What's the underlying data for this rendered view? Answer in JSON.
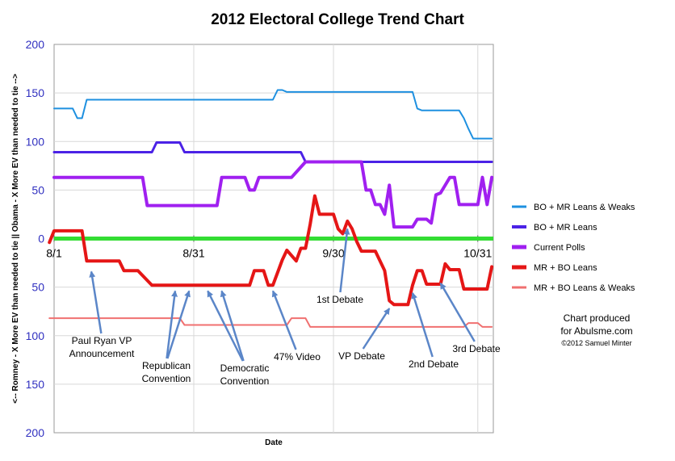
{
  "chart_data": {
    "type": "line",
    "title": "2012 Electoral College Trend Chart",
    "xlabel": "Date",
    "ylabel": "<-- Romney - X More EV than needed to tie  ||  Obama - X More EV than needed to tie -->",
    "x_start": "2012-08-01",
    "x_end": "2012-11-06",
    "ylim": [
      -200,
      200
    ],
    "ytick_values": [
      200,
      150,
      100,
      50,
      0,
      -50,
      -100,
      -150,
      -200
    ],
    "ytick_labels": [
      "200",
      "150",
      "100",
      "50",
      "0",
      "50",
      "100",
      "150",
      "200"
    ],
    "xticks": [
      {
        "label": "8/1",
        "date": "2012-08-01"
      },
      {
        "label": "8/31",
        "date": "2012-08-31"
      },
      {
        "label": "9/30",
        "date": "2012-09-30"
      },
      {
        "label": "10/31",
        "date": "2012-10-31"
      }
    ],
    "grid": true,
    "zero_line_color": "#33dd33",
    "legend_position": "right",
    "series": [
      {
        "name": "BO + MR Leans & Weaks",
        "color": "#1e90e0",
        "points": [
          [
            "2012-08-01",
            134
          ],
          [
            "2012-08-05",
            134
          ],
          [
            "2012-08-06",
            124
          ],
          [
            "2012-08-07",
            124
          ],
          [
            "2012-08-08",
            143
          ],
          [
            "2012-09-17",
            143
          ],
          [
            "2012-09-18",
            153
          ],
          [
            "2012-09-19",
            153
          ],
          [
            "2012-09-20",
            151
          ],
          [
            "2012-10-17",
            151
          ],
          [
            "2012-10-18",
            134
          ],
          [
            "2012-10-19",
            132
          ],
          [
            "2012-10-27",
            132
          ],
          [
            "2012-10-28",
            124
          ],
          [
            "2012-10-29",
            113
          ],
          [
            "2012-10-30",
            103
          ],
          [
            "2012-11-03",
            103
          ]
        ]
      },
      {
        "name": "BO + MR Leans",
        "color": "#4b22e6",
        "points": [
          [
            "2012-08-01",
            89
          ],
          [
            "2012-08-22",
            89
          ],
          [
            "2012-08-23",
            99
          ],
          [
            "2012-08-28",
            99
          ],
          [
            "2012-08-29",
            89
          ],
          [
            "2012-09-23",
            89
          ],
          [
            "2012-09-24",
            79
          ],
          [
            "2012-11-03",
            79
          ]
        ]
      },
      {
        "name": "Current Polls",
        "color": "#a020f0",
        "points": [
          [
            "2012-08-01",
            63
          ],
          [
            "2012-08-20",
            63
          ],
          [
            "2012-08-21",
            34
          ],
          [
            "2012-09-05",
            34
          ],
          [
            "2012-09-06",
            63
          ],
          [
            "2012-09-11",
            63
          ],
          [
            "2012-09-12",
            50
          ],
          [
            "2012-09-13",
            50
          ],
          [
            "2012-09-14",
            63
          ],
          [
            "2012-09-21",
            63
          ],
          [
            "2012-09-24",
            79
          ],
          [
            "2012-10-06",
            79
          ],
          [
            "2012-10-07",
            50
          ],
          [
            "2012-10-08",
            50
          ],
          [
            "2012-10-09",
            35
          ],
          [
            "2012-10-10",
            35
          ],
          [
            "2012-10-11",
            25
          ],
          [
            "2012-10-12",
            55
          ],
          [
            "2012-10-13",
            12
          ],
          [
            "2012-10-16",
            12
          ],
          [
            "2012-10-17",
            12
          ],
          [
            "2012-10-18",
            20
          ],
          [
            "2012-10-20",
            20
          ],
          [
            "2012-10-21",
            16
          ],
          [
            "2012-10-22",
            45
          ],
          [
            "2012-10-23",
            47
          ],
          [
            "2012-10-24",
            55
          ],
          [
            "2012-10-25",
            63
          ],
          [
            "2012-10-26",
            63
          ],
          [
            "2012-10-27",
            35
          ],
          [
            "2012-10-31",
            35
          ],
          [
            "2012-11-01",
            63
          ],
          [
            "2012-11-02",
            35
          ],
          [
            "2012-11-03",
            63
          ]
        ]
      },
      {
        "name": "MR + BO Leans",
        "color": "#e51616",
        "points": [
          [
            "2012-07-31",
            -4
          ],
          [
            "2012-08-01",
            8
          ],
          [
            "2012-08-07",
            8
          ],
          [
            "2012-08-08",
            -23
          ],
          [
            "2012-08-15",
            -23
          ],
          [
            "2012-08-16",
            -33
          ],
          [
            "2012-08-19",
            -33
          ],
          [
            "2012-08-22",
            -48
          ],
          [
            "2012-09-12",
            -48
          ],
          [
            "2012-09-13",
            -33
          ],
          [
            "2012-09-15",
            -33
          ],
          [
            "2012-09-16",
            -48
          ],
          [
            "2012-09-17",
            -48
          ],
          [
            "2012-09-19",
            -22
          ],
          [
            "2012-09-20",
            -12
          ],
          [
            "2012-09-22",
            -23
          ],
          [
            "2012-09-23",
            -10
          ],
          [
            "2012-09-24",
            -10
          ],
          [
            "2012-09-25",
            15
          ],
          [
            "2012-09-26",
            44
          ],
          [
            "2012-09-27",
            25
          ],
          [
            "2012-09-28",
            25
          ],
          [
            "2012-09-30",
            25
          ],
          [
            "2012-10-01",
            10
          ],
          [
            "2012-10-02",
            5
          ],
          [
            "2012-10-03",
            18
          ],
          [
            "2012-10-04",
            10
          ],
          [
            "2012-10-05",
            -3
          ],
          [
            "2012-10-06",
            -13
          ],
          [
            "2012-10-09",
            -13
          ],
          [
            "2012-10-11",
            -33
          ],
          [
            "2012-10-12",
            -64
          ],
          [
            "2012-10-13",
            -68
          ],
          [
            "2012-10-16",
            -68
          ],
          [
            "2012-10-17",
            -48
          ],
          [
            "2012-10-18",
            -33
          ],
          [
            "2012-10-19",
            -33
          ],
          [
            "2012-10-20",
            -47
          ],
          [
            "2012-10-23",
            -47
          ],
          [
            "2012-10-24",
            -26
          ],
          [
            "2012-10-25",
            -32
          ],
          [
            "2012-10-27",
            -32
          ],
          [
            "2012-10-28",
            -52
          ],
          [
            "2012-11-02",
            -52
          ],
          [
            "2012-11-03",
            -29
          ]
        ]
      },
      {
        "name": "MR + BO Leans & Weaks",
        "color": "#f07070",
        "points": [
          [
            "2012-07-31",
            -82
          ],
          [
            "2012-08-28",
            -82
          ],
          [
            "2012-08-29",
            -89
          ],
          [
            "2012-09-20",
            -89
          ],
          [
            "2012-09-21",
            -82
          ],
          [
            "2012-09-24",
            -82
          ],
          [
            "2012-09-25",
            -91
          ],
          [
            "2012-10-28",
            -91
          ],
          [
            "2012-10-29",
            -87
          ],
          [
            "2012-10-31",
            -87
          ],
          [
            "2012-11-01",
            -91
          ],
          [
            "2012-11-03",
            -91
          ]
        ]
      }
    ],
    "annotations": [
      {
        "lines": [
          "Paul Ryan VP",
          "Announcement"
        ],
        "arrow_to": [
          [
            "2012-08-09",
            -34
          ]
        ]
      },
      {
        "lines": [
          "Republican",
          "Convention"
        ],
        "arrow_to": [
          [
            "2012-08-27",
            -54
          ],
          [
            "2012-08-30",
            -54
          ]
        ]
      },
      {
        "lines": [
          "Democratic",
          "Convention"
        ],
        "arrow_to": [
          [
            "2012-09-03",
            -54
          ],
          [
            "2012-09-06",
            -54
          ]
        ]
      },
      {
        "lines": [
          "47% Video"
        ],
        "arrow_to": [
          [
            "2012-09-17",
            -54
          ]
        ]
      },
      {
        "lines": [
          "1st Debate"
        ],
        "arrow_to": [
          [
            "2012-10-03",
            10
          ]
        ]
      },
      {
        "lines": [
          "VP Debate"
        ],
        "arrow_to": [
          [
            "2012-10-12",
            -72
          ]
        ]
      },
      {
        "lines": [
          "2nd Debate"
        ],
        "arrow_to": [
          [
            "2012-10-17",
            -56
          ]
        ]
      },
      {
        "lines": [
          "3rd Debate"
        ],
        "arrow_to": [
          [
            "2012-10-23",
            -46
          ]
        ]
      }
    ],
    "credit": [
      "Chart produced",
      "for Abulsme.com",
      "©2012 Samuel Minter"
    ]
  }
}
